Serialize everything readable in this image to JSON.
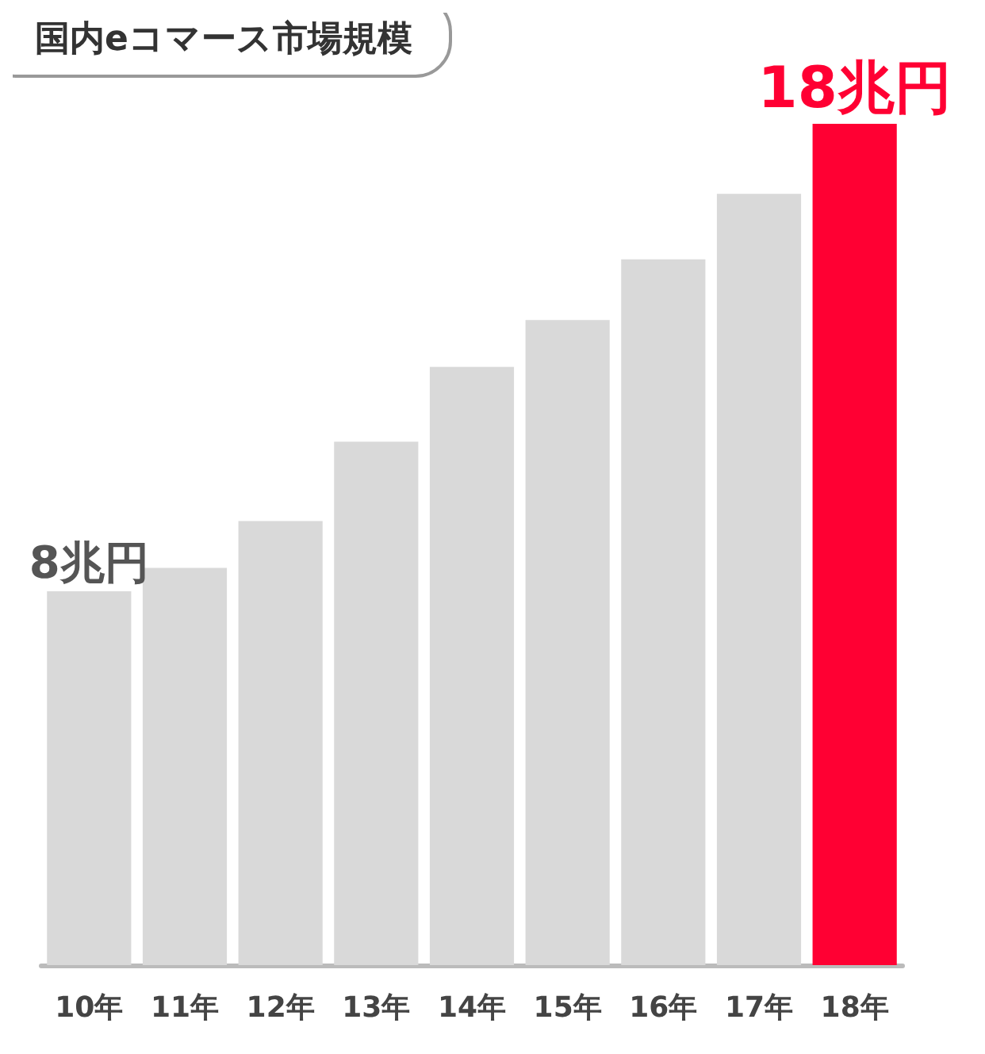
{
  "chart_data": {
    "type": "bar",
    "title": "国内eコマース市場規模",
    "categories": [
      "10年",
      "11年",
      "12年",
      "13年",
      "14年",
      "15年",
      "16年",
      "17年",
      "18年"
    ],
    "values": [
      8,
      8.5,
      9.5,
      11.2,
      12.8,
      13.8,
      15.1,
      16.5,
      18
    ],
    "colors": [
      "#d9d9d9",
      "#d9d9d9",
      "#d9d9d9",
      "#d9d9d9",
      "#d9d9d9",
      "#d9d9d9",
      "#d9d9d9",
      "#d9d9d9",
      "#ff0033"
    ],
    "value_labels": [
      "8兆円",
      null,
      null,
      null,
      null,
      null,
      null,
      null,
      "18兆円"
    ],
    "grid": false
  }
}
